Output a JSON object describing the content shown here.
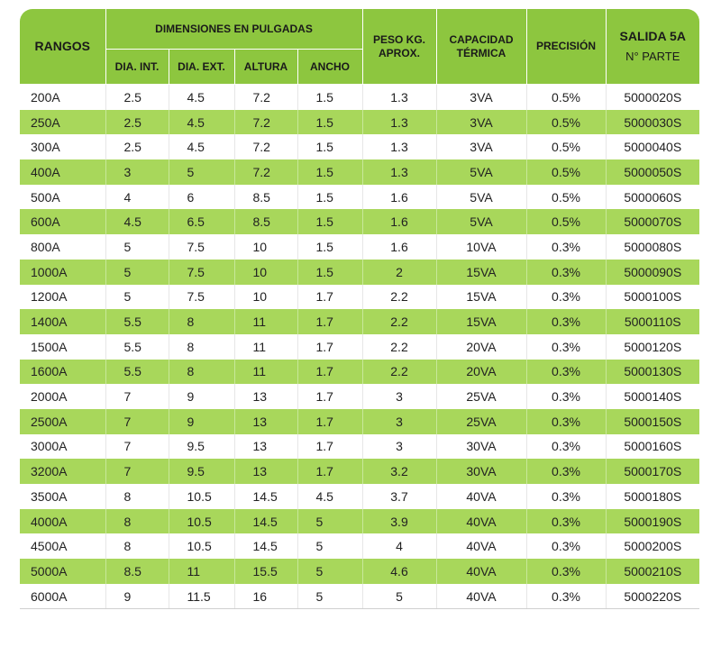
{
  "header": {
    "rangos": "RANGOS",
    "dimensiones": "DIMENSIONES EN PULGADAS",
    "dia_int": "DIA. INT.",
    "dia_ext": "DIA. EXT.",
    "altura": "ALTURA",
    "ancho": "ANCHO",
    "peso_line1": "PESO KG.",
    "peso_line2": "APROX.",
    "capacidad_line1": "CAPACIDAD",
    "capacidad_line2": "TÉRMICA",
    "precision": "PRECISIÓN",
    "salida_line1": "SALIDA 5A",
    "salida_line2": "N° PARTE"
  },
  "rows": [
    [
      "200A",
      "2.5",
      "4.5",
      "7.2",
      "1.5",
      "1.3",
      "3VA",
      "0.5%",
      "5000020S"
    ],
    [
      "250A",
      "2.5",
      "4.5",
      "7.2",
      "1.5",
      "1.3",
      "3VA",
      "0.5%",
      "5000030S"
    ],
    [
      "300A",
      "2.5",
      "4.5",
      "7.2",
      "1.5",
      "1.3",
      "3VA",
      "0.5%",
      "5000040S"
    ],
    [
      "400A",
      "3",
      "5",
      "7.2",
      "1.5",
      "1.3",
      "5VA",
      "0.5%",
      "5000050S"
    ],
    [
      "500A",
      "4",
      "6",
      "8.5",
      "1.5",
      "1.6",
      "5VA",
      "0.5%",
      "5000060S"
    ],
    [
      "600A",
      "4.5",
      "6.5",
      "8.5",
      "1.5",
      "1.6",
      "5VA",
      "0.5%",
      "5000070S"
    ],
    [
      "800A",
      "5",
      "7.5",
      "10",
      "1.5",
      "1.6",
      "10VA",
      "0.3%",
      "5000080S"
    ],
    [
      "1000A",
      "5",
      "7.5",
      "10",
      "1.5",
      "2",
      "15VA",
      "0.3%",
      "5000090S"
    ],
    [
      "1200A",
      "5",
      "7.5",
      "10",
      "1.7",
      "2.2",
      "15VA",
      "0.3%",
      "5000100S"
    ],
    [
      "1400A",
      "5.5",
      "8",
      "11",
      "1.7",
      "2.2",
      "15VA",
      "0.3%",
      "5000110S"
    ],
    [
      "1500A",
      "5.5",
      "8",
      "11",
      "1.7",
      "2.2",
      "20VA",
      "0.3%",
      "5000120S"
    ],
    [
      "1600A",
      "5.5",
      "8",
      "11",
      "1.7",
      "2.2",
      "20VA",
      "0.3%",
      "5000130S"
    ],
    [
      "2000A",
      "7",
      "9",
      "13",
      "1.7",
      "3",
      "25VA",
      "0.3%",
      "5000140S"
    ],
    [
      "2500A",
      "7",
      "9",
      "13",
      "1.7",
      "3",
      "25VA",
      "0.3%",
      "5000150S"
    ],
    [
      "3000A",
      "7",
      "9.5",
      "13",
      "1.7",
      "3",
      "30VA",
      "0.3%",
      "5000160S"
    ],
    [
      "3200A",
      "7",
      "9.5",
      "13",
      "1.7",
      "3.2",
      "30VA",
      "0.3%",
      "5000170S"
    ],
    [
      "3500A",
      "8",
      "10.5",
      "14.5",
      "4.5",
      "3.7",
      "40VA",
      "0.3%",
      "5000180S"
    ],
    [
      "4000A",
      "8",
      "10.5",
      "14.5",
      "5",
      "3.9",
      "40VA",
      "0.3%",
      "5000190S"
    ],
    [
      "4500A",
      "8",
      "10.5",
      "14.5",
      "5",
      "4",
      "40VA",
      "0.3%",
      "5000200S"
    ],
    [
      "5000A",
      "8.5",
      "11",
      "15.5",
      "5",
      "4.6",
      "40VA",
      "0.3%",
      "5000210S"
    ],
    [
      "6000A",
      "9",
      "11.5",
      "16",
      "5",
      "5",
      "40VA",
      "0.3%",
      "5000220S"
    ]
  ],
  "colors": {
    "header_green": "#8dc63f",
    "stripe_green": "#a8d75b",
    "row_white": "#ffffff"
  }
}
